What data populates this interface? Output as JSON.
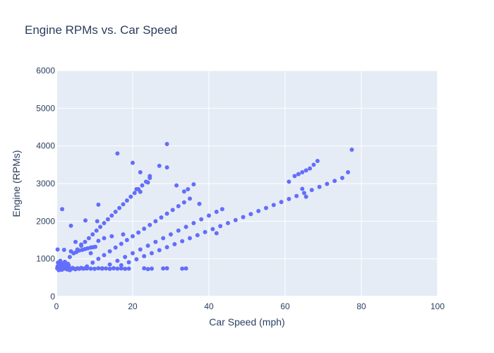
{
  "chart_data": {
    "type": "scatter",
    "title": "Engine RPMs vs. Car Speed",
    "xlabel": "Car Speed (mph)",
    "ylabel": "Engine (RPMs)",
    "xlim": [
      0,
      100
    ],
    "ylim": [
      0,
      6000
    ],
    "xticks": [
      0,
      20,
      40,
      60,
      80,
      100
    ],
    "yticks": [
      0,
      1000,
      2000,
      3000,
      4000,
      5000,
      6000
    ],
    "grid": true,
    "marker_color": "#636efa",
    "plot_bg": "#e5ecf6",
    "series": [
      {
        "x": [
          0.2,
          0.5,
          0.8,
          1.0,
          1.3,
          1.6,
          2.0,
          2.3,
          2.7,
          3.0,
          3.4,
          3.8,
          4.2,
          4.6,
          5.0,
          5.5,
          6.0,
          6.5,
          7.0,
          7.5,
          8.0,
          9.0,
          10.0,
          11.0,
          12.0,
          13.0,
          14.0,
          15.0,
          16.0,
          17.0,
          18.0,
          19.0,
          23.0,
          24.0,
          25.0,
          28.0,
          29.0,
          33.0,
          34.0,
          0.3,
          0.7,
          1.2,
          1.8,
          2.5,
          3.2,
          0.4,
          1.0,
          1.5,
          2.2,
          3.0,
          0.6,
          1.4,
          2.8,
          3.5,
          0.9,
          2.0,
          0.3,
          2.0,
          3.8,
          4.5,
          5.2,
          6.0,
          6.8,
          7.5,
          8.2,
          9.0,
          9.6,
          10.2,
          1.5,
          3.8,
          7.6,
          10.7,
          11.0,
          3.5,
          4.5,
          5.5,
          6.5,
          7.5,
          8.5,
          9.5,
          10.5,
          11.5,
          12.5,
          13.5,
          14.5,
          15.5,
          16.5,
          17.5,
          18.5,
          19.5,
          20.5,
          21.5,
          22.5,
          23.5,
          24.5,
          8.0,
          9.5,
          11.0,
          12.5,
          14.0,
          15.5,
          17.0,
          18.5,
          20.0,
          21.5,
          23.0,
          24.5,
          26.0,
          27.5,
          29.0,
          30.5,
          32.0,
          33.5,
          35.0,
          12.0,
          14.0,
          16.0,
          18.0,
          20.0,
          22.0,
          24.0,
          26.0,
          28.0,
          30.0,
          32.0,
          34.0,
          36.0,
          38.0,
          40.0,
          42.0,
          43.5,
          15.0,
          17.0,
          19.0,
          21.0,
          23.0,
          25.0,
          27.0,
          29.0,
          31.0,
          33.0,
          35.0,
          37.0,
          39.0,
          41.0,
          43.0,
          45.0,
          47.0,
          49.0,
          51.0,
          53.0,
          55.0,
          57.0,
          59.0,
          61.0,
          63.0,
          65.0,
          67.0,
          69.0,
          71.0,
          73.0,
          75.0,
          76.5,
          77.5,
          61.0,
          62.5,
          63.5,
          64.5,
          65.5,
          66.5,
          67.5,
          68.5,
          21.0,
          22.0,
          24.0,
          27.0,
          29.0,
          33.5,
          36.0,
          37.5,
          42.0,
          64.5,
          65.5,
          29.0,
          16.0,
          20.0,
          22.0,
          24.5,
          31.5,
          34.5,
          11.0,
          12.5,
          14.5,
          17.5,
          9.0,
          6.5,
          5.0
        ],
        "y": [
          750,
          740,
          760,
          745,
          730,
          755,
          740,
          760,
          735,
          750,
          745,
          730,
          760,
          740,
          725,
          750,
          735,
          760,
          740,
          750,
          745,
          740,
          735,
          750,
          740,
          745,
          735,
          750,
          740,
          745,
          735,
          740,
          750,
          730,
          740,
          745,
          750,
          740,
          745,
          800,
          820,
          850,
          780,
          790,
          830,
          900,
          950,
          880,
          920,
          870,
          700,
          710,
          720,
          700,
          860,
          840,
          1250,
          1240,
          1200,
          1150,
          1180,
          1220,
          1240,
          1260,
          1280,
          1300,
          1310,
          1320,
          2320,
          1880,
          2020,
          2000,
          2440,
          1050,
          1150,
          1250,
          1350,
          1450,
          1550,
          1650,
          1750,
          1850,
          1950,
          2050,
          2150,
          2250,
          2350,
          2450,
          2550,
          2650,
          2750,
          2850,
          2950,
          3050,
          3150,
          800,
          900,
          1000,
          1100,
          1200,
          1300,
          1400,
          1500,
          1600,
          1700,
          1800,
          1900,
          2000,
          2100,
          2200,
          2300,
          2400,
          2500,
          2600,
          750,
          850,
          950,
          1050,
          1150,
          1250,
          1350,
          1450,
          1550,
          1650,
          1750,
          1850,
          1950,
          2050,
          2150,
          2250,
          2320,
          750,
          830,
          910,
          990,
          1070,
          1150,
          1230,
          1310,
          1390,
          1470,
          1550,
          1630,
          1710,
          1790,
          1870,
          1950,
          2030,
          2110,
          2190,
          2270,
          2350,
          2430,
          2510,
          2590,
          2670,
          2750,
          2830,
          2910,
          2990,
          3070,
          3150,
          3300,
          3900,
          3050,
          3200,
          3250,
          3300,
          3350,
          3400,
          3500,
          3600,
          2850,
          2780,
          3030,
          3470,
          3430,
          2790,
          2980,
          2460,
          1680,
          2860,
          2650,
          4050,
          3800,
          3550,
          3300,
          3200,
          2950,
          2850,
          1480,
          1550,
          1600,
          1650,
          1150,
          1380,
          1450
        ]
      }
    ]
  }
}
